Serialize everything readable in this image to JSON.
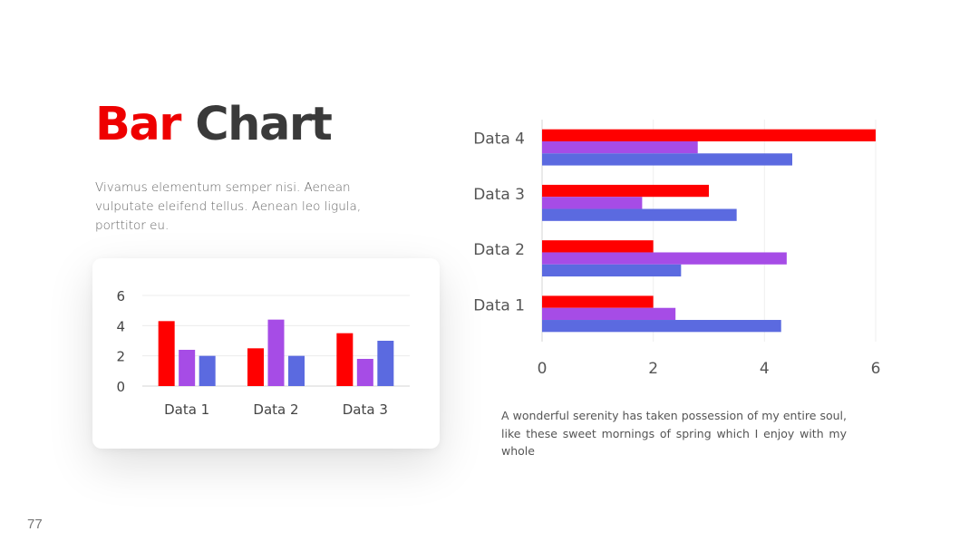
{
  "slide": {
    "title_accent": "Bar",
    "title_rest": "Chart",
    "subtitle": "Vivamus elementum semper nisi. Aenean vulputate eleifend tellus. Aenean leo ligula, porttitor eu.",
    "caption": "A wonderful serenity has taken possession of my entire soul, like these sweet mornings of spring which I enjoy with my whole",
    "page_number": "77"
  },
  "colors": {
    "accent": "#ee0000",
    "red": "#ff0000",
    "purple": "#a64ce6",
    "blue": "#5b6ae0"
  },
  "chart_data": [
    {
      "type": "bar",
      "orientation": "vertical",
      "categories": [
        "Data 1",
        "Data 2",
        "Data 3"
      ],
      "series": [
        {
          "values": [
            4.3,
            2.5,
            3.5
          ],
          "color": "#ff0000"
        },
        {
          "values": [
            2.4,
            4.4,
            1.8
          ],
          "color": "#a64ce6"
        },
        {
          "values": [
            2.0,
            2.0,
            3.0
          ],
          "color": "#5b6ae0"
        }
      ],
      "ylim": [
        0,
        6
      ],
      "yticks": [
        0,
        2,
        4,
        6
      ],
      "grid": true
    },
    {
      "type": "bar",
      "orientation": "horizontal",
      "categories": [
        "Data 1",
        "Data 2",
        "Data 3",
        "Data 4"
      ],
      "series": [
        {
          "values": [
            2.0,
            2.0,
            3.0,
            6.0
          ],
          "color": "#ff0000"
        },
        {
          "values": [
            2.4,
            4.4,
            1.8,
            2.8
          ],
          "color": "#a64ce6"
        },
        {
          "values": [
            4.3,
            2.5,
            3.5,
            4.5
          ],
          "color": "#5b6ae0"
        }
      ],
      "xlim": [
        0,
        6
      ],
      "xticks": [
        0,
        2,
        4,
        6
      ],
      "grid": true
    }
  ]
}
